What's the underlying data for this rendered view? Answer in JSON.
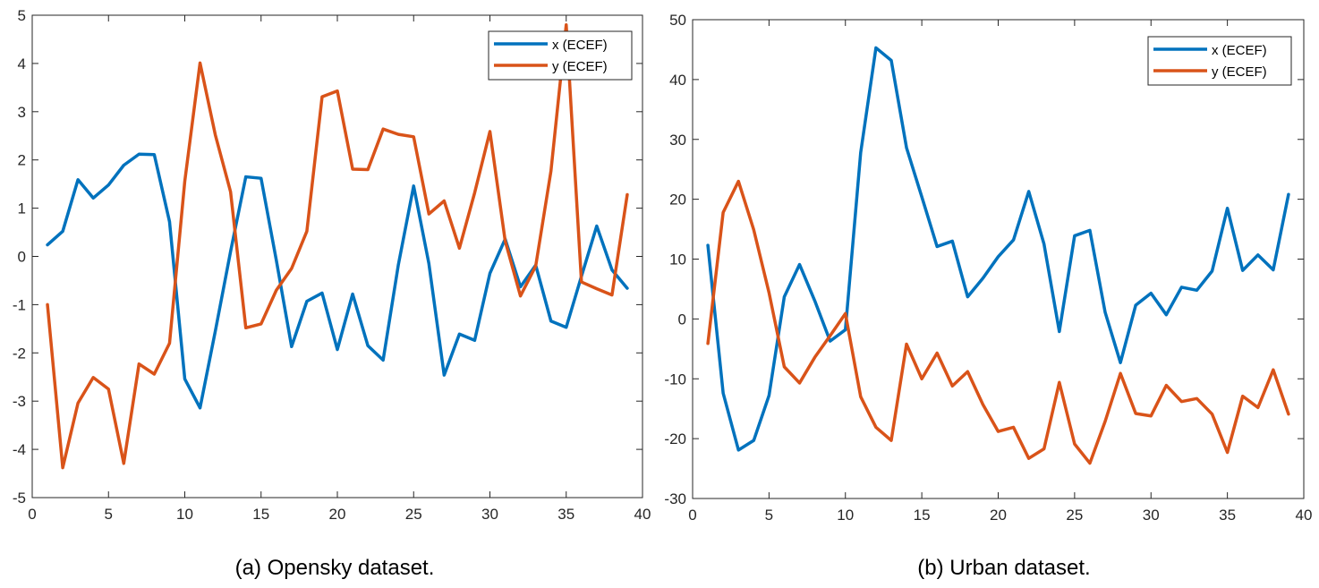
{
  "chart_data": [
    {
      "type": "line",
      "caption": "(a) Opensky dataset.",
      "xlim": [
        0,
        40
      ],
      "ylim": [
        -5,
        5
      ],
      "xticks": [
        0,
        5,
        10,
        15,
        20,
        25,
        30,
        35,
        40
      ],
      "yticks": [
        -5,
        -4,
        -3,
        -2,
        -1,
        0,
        1,
        2,
        3,
        4,
        5
      ],
      "legend_position": "top-right",
      "grid": false,
      "x": [
        1,
        2,
        3,
        4,
        5,
        6,
        7,
        8,
        9,
        10,
        11,
        12,
        13,
        14,
        15,
        16,
        17,
        18,
        19,
        20,
        21,
        22,
        23,
        24,
        25,
        26,
        27,
        28,
        29,
        30,
        31,
        32,
        33,
        34,
        35,
        36,
        37,
        38,
        39
      ],
      "series": [
        {
          "name": "x (ECEF)",
          "color": "#0072BD",
          "values": [
            0.24,
            0.52,
            1.59,
            1.21,
            1.48,
            1.89,
            2.12,
            2.11,
            0.72,
            -2.54,
            -3.14,
            -1.55,
            0.1,
            1.65,
            1.62,
            -0.08,
            -1.87,
            -0.93,
            -0.76,
            -1.93,
            -0.78,
            -1.85,
            -2.15,
            -0.17,
            1.46,
            -0.15,
            -2.46,
            -1.61,
            -1.74,
            -0.35,
            0.36,
            -0.63,
            -0.18,
            -1.34,
            -1.47,
            -0.41,
            0.63,
            -0.28,
            -0.66
          ]
        },
        {
          "name": "y (ECEF)",
          "color": "#D95319",
          "values": [
            -1.0,
            -4.38,
            -3.04,
            -2.51,
            -2.75,
            -4.29,
            -2.23,
            -2.44,
            -1.8,
            1.56,
            4.01,
            2.52,
            1.34,
            -1.48,
            -1.4,
            -0.7,
            -0.25,
            0.52,
            3.31,
            3.43,
            1.81,
            1.8,
            2.64,
            2.53,
            2.48,
            0.88,
            1.15,
            0.17,
            1.32,
            2.59,
            0.32,
            -0.82,
            -0.2,
            1.77,
            4.8,
            -0.53,
            -0.67,
            -0.8,
            1.28
          ]
        }
      ]
    },
    {
      "type": "line",
      "caption": "(b) Urban dataset.",
      "xlim": [
        0,
        40
      ],
      "ylim": [
        -30,
        50
      ],
      "xticks": [
        0,
        5,
        10,
        15,
        20,
        25,
        30,
        35,
        40
      ],
      "yticks": [
        -30,
        -20,
        -10,
        0,
        10,
        20,
        30,
        40,
        50
      ],
      "legend_position": "top-right",
      "grid": false,
      "x": [
        1,
        2,
        3,
        4,
        5,
        6,
        7,
        8,
        9,
        10,
        11,
        12,
        13,
        14,
        15,
        16,
        17,
        18,
        19,
        20,
        21,
        22,
        23,
        24,
        25,
        26,
        27,
        28,
        29,
        30,
        31,
        32,
        33,
        34,
        35,
        36,
        37,
        38,
        39
      ],
      "series": [
        {
          "name": "x (ECEF)",
          "color": "#0072BD",
          "values": [
            12.3,
            -12.4,
            -21.9,
            -20.3,
            -12.8,
            3.7,
            9.1,
            3.0,
            -3.7,
            -1.8,
            27.8,
            45.3,
            43.2,
            28.6,
            20.4,
            12.1,
            13.0,
            3.7,
            6.8,
            10.4,
            13.2,
            21.3,
            12.5,
            -2.1,
            13.9,
            14.8,
            1.1,
            -7.3,
            2.3,
            4.3,
            0.7,
            5.3,
            4.8,
            8.0,
            18.5,
            8.1,
            10.7,
            8.2,
            20.8
          ]
        },
        {
          "name": "y (ECEF)",
          "color": "#D95319",
          "values": [
            -4.1,
            17.8,
            23.0,
            14.9,
            4.4,
            -8.0,
            -10.7,
            -6.4,
            -2.8,
            0.9,
            -13.0,
            -18.1,
            -20.3,
            -4.2,
            -10.0,
            -5.7,
            -11.2,
            -8.8,
            -14.3,
            -18.8,
            -18.1,
            -23.3,
            -21.7,
            -10.6,
            -20.9,
            -24.1,
            -17.1,
            -9.1,
            -15.8,
            -16.2,
            -11.1,
            -13.8,
            -13.3,
            -15.9,
            -22.3,
            -12.9,
            -14.8,
            -8.5,
            -15.9
          ]
        }
      ]
    }
  ]
}
